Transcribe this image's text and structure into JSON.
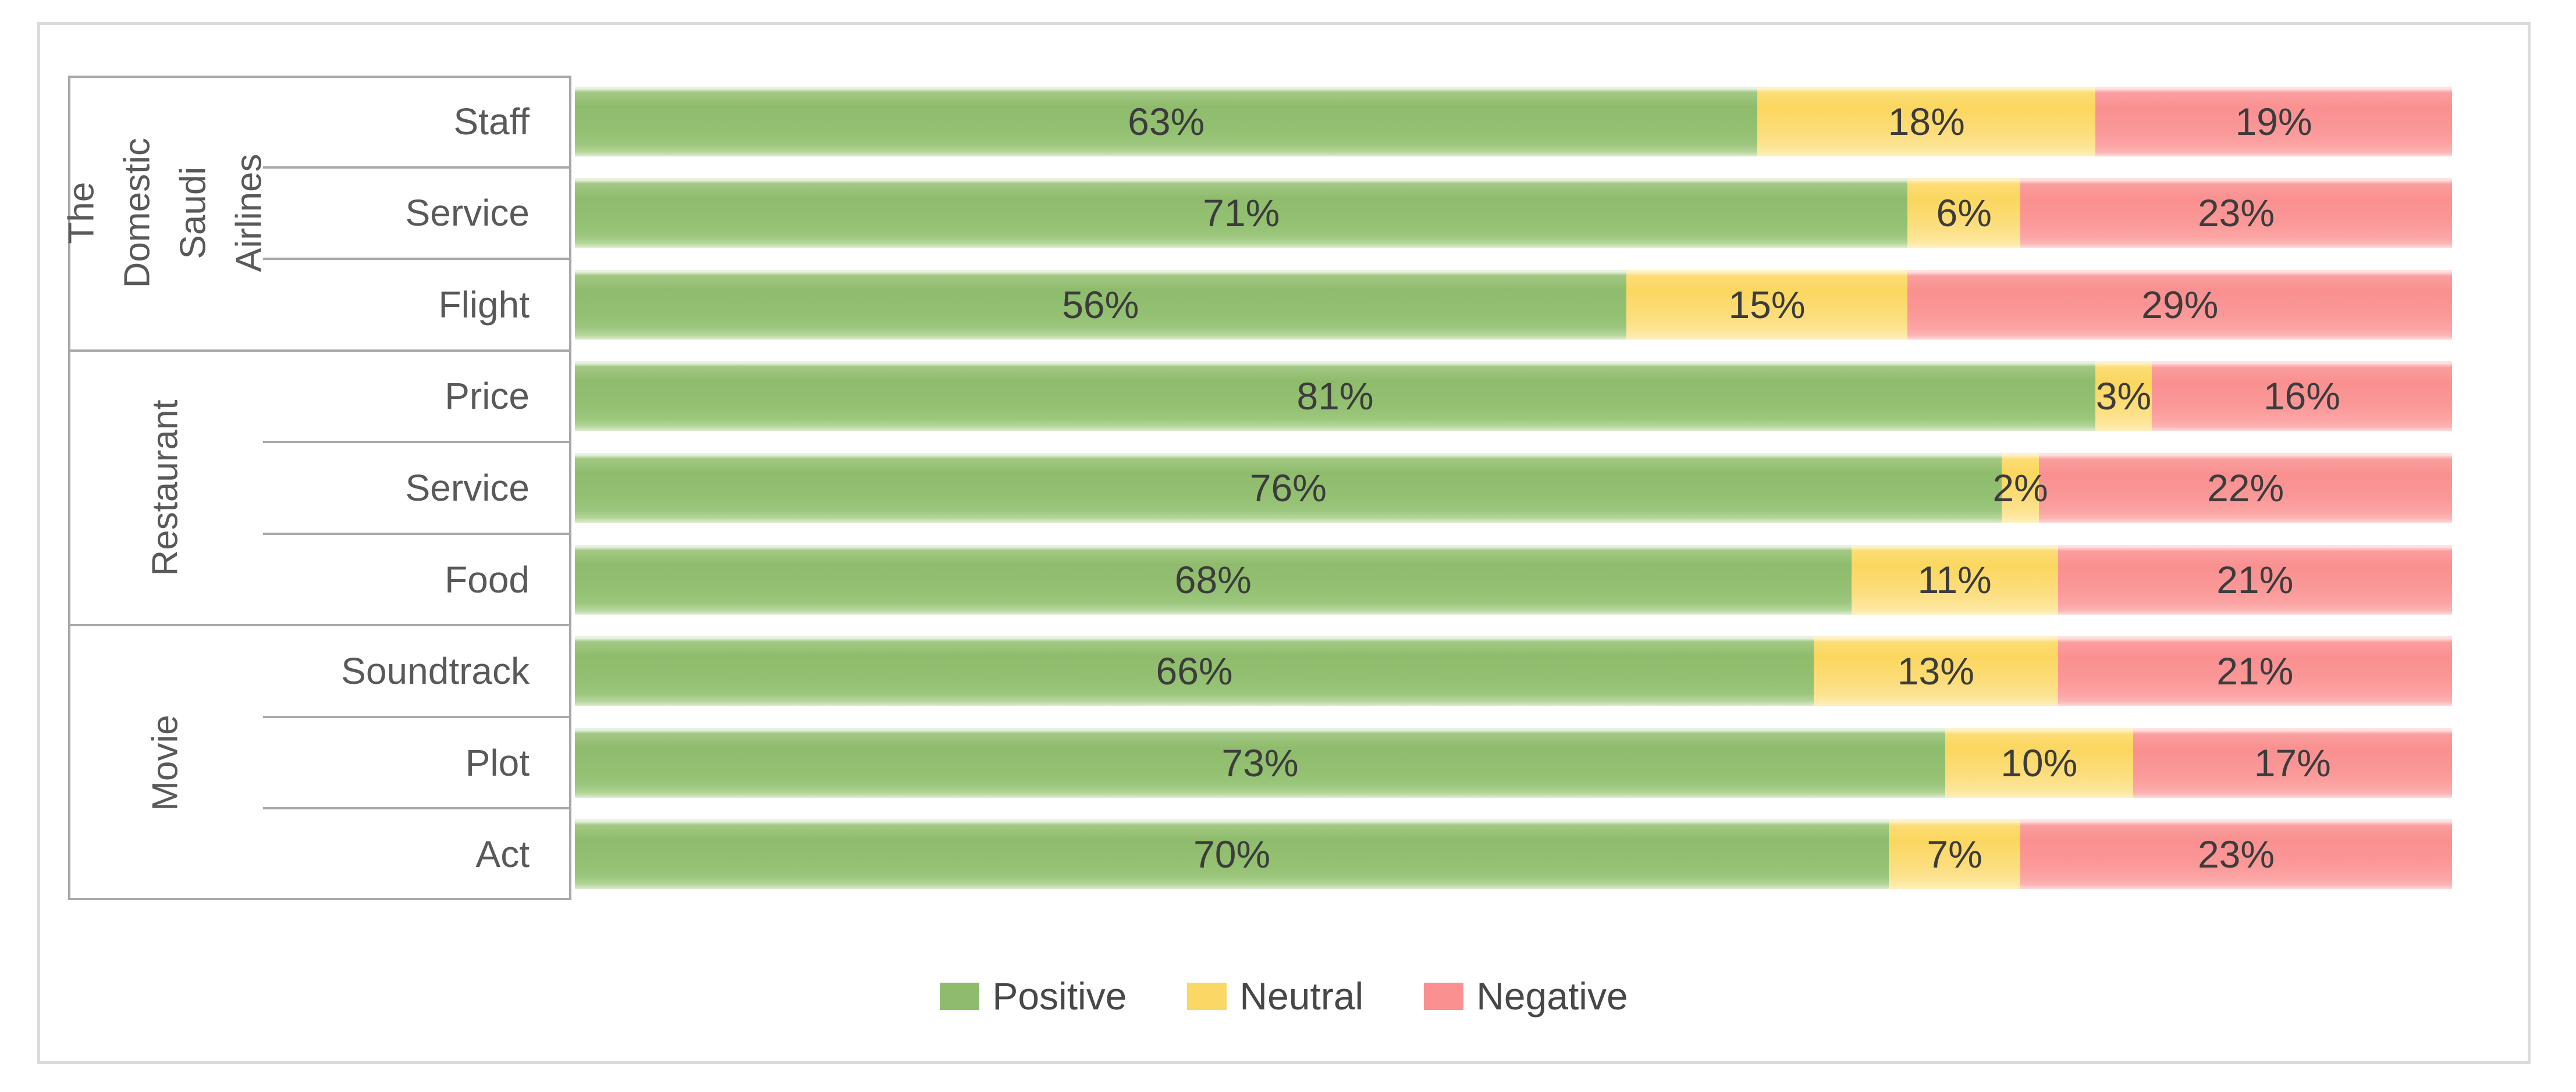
{
  "chart_data": {
    "type": "bar",
    "stacked": true,
    "orientation": "horizontal",
    "xlim": [
      0,
      100
    ],
    "grid": false,
    "value_label_suffix": "%",
    "series": [
      {
        "name": "Positive",
        "color": "#8FBC6C"
      },
      {
        "name": "Neutral",
        "color": "#FBD765"
      },
      {
        "name": "Negative",
        "color": "#FA9090"
      }
    ],
    "groups": [
      {
        "label": "The Domestic Saudi Airlines",
        "items": [
          {
            "label": "Staff",
            "values": [
              63,
              18,
              19
            ]
          },
          {
            "label": "Service",
            "values": [
              71,
              6,
              23
            ]
          },
          {
            "label": "Flight",
            "values": [
              56,
              15,
              29
            ]
          }
        ]
      },
      {
        "label": "Restaurant",
        "items": [
          {
            "label": "Price",
            "values": [
              81,
              3,
              16
            ]
          },
          {
            "label": "Service",
            "values": [
              76,
              2,
              22
            ]
          },
          {
            "label": "Food",
            "values": [
              68,
              11,
              21
            ]
          }
        ]
      },
      {
        "label": "Movie",
        "items": [
          {
            "label": "Soundtrack",
            "values": [
              66,
              13,
              21
            ]
          },
          {
            "label": "Plot",
            "values": [
              73,
              10,
              17
            ]
          },
          {
            "label": "Act",
            "values": [
              70,
              7,
              23
            ]
          }
        ]
      }
    ],
    "legend": {
      "position": "bottom",
      "entries": [
        "Positive",
        "Neutral",
        "Negative"
      ]
    }
  },
  "colors": {
    "positive": "#8FBC6C",
    "neutral": "#FBD765",
    "negative": "#FA9090",
    "axis_text": "#595959",
    "value_text": "#3C3C3C",
    "table_border": "#A9A9A9",
    "outer_border": "#DBDBDB"
  }
}
